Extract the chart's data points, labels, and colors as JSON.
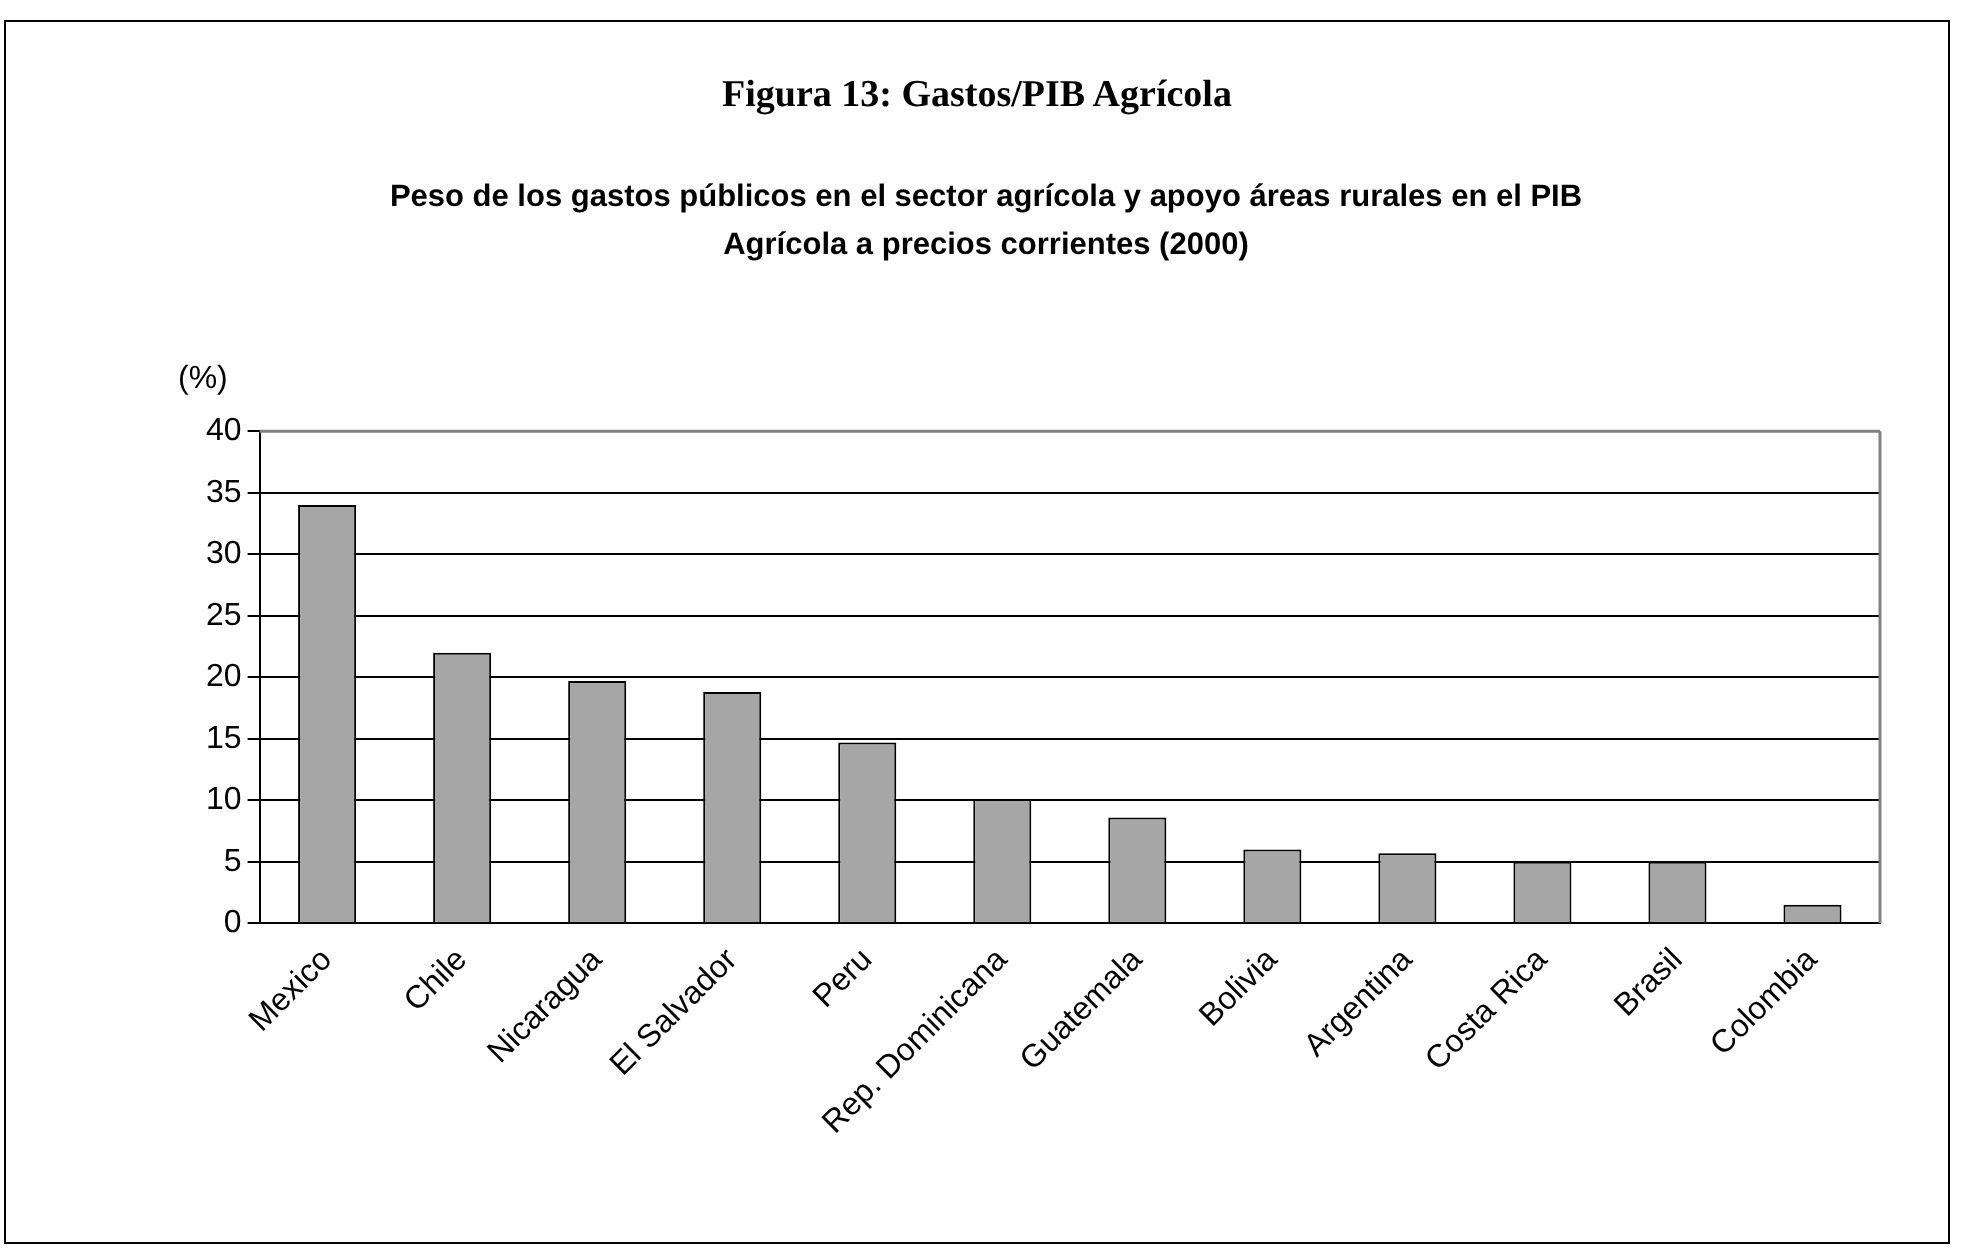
{
  "chart_data": {
    "type": "bar",
    "title": "Figura 13: Gastos/PIB Agrícola",
    "subtitle": "Peso de los gastos públicos en el sector agrícola y apoyo áreas rurales en el PIB Agrícola a precios corrientes (2000)",
    "ylabel": "(%)",
    "categories": [
      "Mexico",
      "Chile",
      "Nicaragua",
      "El Salvador",
      "Peru",
      "Rep. Dominicana",
      "Guatemala",
      "Bolivia",
      "Argentina",
      "Costa Rica",
      "Brasil",
      "Colombia"
    ],
    "values": [
      34,
      22,
      19.7,
      18.8,
      14.7,
      10.1,
      8.6,
      6.0,
      5.7,
      5.0,
      5.0,
      1.5
    ],
    "color": "#a6a6a6",
    "ylim": [
      0,
      40
    ],
    "yticks": [
      0,
      5,
      10,
      15,
      20,
      25,
      30,
      35,
      40
    ],
    "grid": "y",
    "legend": false
  }
}
